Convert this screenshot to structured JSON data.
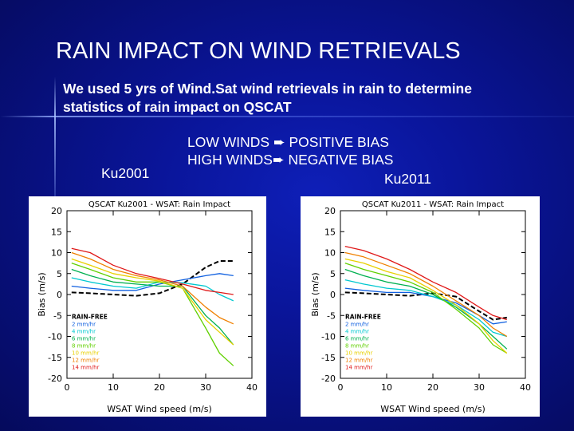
{
  "slide": {
    "title": "RAIN IMPACT ON WIND RETRIEVALS",
    "intro_line1": "We used 5 yrs of Wind.Sat wind retrievals in rain to determine",
    "intro_line2": "statistics of rain impact on QSCAT",
    "low_winds": "LOW WINDS",
    "positive_bias": "POSITIVE BIAS",
    "high_winds": "HIGH WINDS",
    "negative_bias": "NEGATIVE BIAS",
    "label_left": "Ku2001",
    "label_right": "Ku2011",
    "arrow_icon": "arrow-right-icon"
  },
  "chart_data": [
    {
      "type": "line",
      "title": "QSCAT Ku2001 - WSAT: Rain Impact",
      "xlabel": "WSAT Wind speed (m/s)",
      "ylabel": "Bias (m/s)",
      "xlim": [
        0,
        40
      ],
      "ylim": [
        -20,
        20
      ],
      "xticks": [
        "0",
        "10",
        "20",
        "30",
        "40"
      ],
      "yticks": [
        "20",
        "15",
        "10",
        "5",
        "0",
        "-5",
        "-10",
        "-15",
        "-20"
      ],
      "x": [
        1,
        5,
        10,
        15,
        20,
        25,
        30,
        33,
        36
      ],
      "series": [
        {
          "name": "RAIN-FREE",
          "color": "#000000",
          "dashed": true,
          "values": [
            0.5,
            0.3,
            0.0,
            -0.3,
            0.3,
            2.5,
            6.5,
            8.0,
            8.0
          ]
        },
        {
          "name": "2 mm/hr",
          "color": "#1060e0",
          "values": [
            2.0,
            1.5,
            1.0,
            1.0,
            2.5,
            3.5,
            4.5,
            5.0,
            4.5
          ]
        },
        {
          "name": "4 mm/hr",
          "color": "#00c8d0",
          "values": [
            4.0,
            3.0,
            2.0,
            1.5,
            3.0,
            2.8,
            2.0,
            0.0,
            -1.5
          ]
        },
        {
          "name": "6 mm/hr",
          "color": "#00b050",
          "values": [
            6.0,
            4.5,
            3.0,
            2.5,
            2.0,
            2.0,
            -5.0,
            -8.0,
            -12.0
          ]
        },
        {
          "name": "8 mm/hr",
          "color": "#60d000",
          "values": [
            7.5,
            6.0,
            4.0,
            3.0,
            3.0,
            1.5,
            -8.0,
            -14.0,
            -17.0
          ]
        },
        {
          "name": "10 mm/hr",
          "color": "#e8d000",
          "values": [
            8.5,
            7.0,
            5.0,
            4.0,
            3.2,
            1.5,
            -6.0,
            -9.0,
            -12.0
          ]
        },
        {
          "name": "12 mm/hr",
          "color": "#f08000",
          "values": [
            10.0,
            8.5,
            6.0,
            4.5,
            3.5,
            2.0,
            -3.0,
            -5.5,
            -7.0
          ]
        },
        {
          "name": "14 mm/hr",
          "color": "#e01818",
          "values": [
            11.0,
            10.0,
            7.0,
            5.0,
            3.8,
            2.5,
            1.0,
            0.5,
            0.0
          ]
        }
      ]
    },
    {
      "type": "line",
      "title": "QSCAT Ku2011 - WSAT: Rain Impact",
      "xlabel": "WSAT Wind speed (m/s)",
      "ylabel": "Bias (m/s)",
      "xlim": [
        0,
        40
      ],
      "ylim": [
        -20,
        20
      ],
      "xticks": [
        "0",
        "10",
        "20",
        "30",
        "40"
      ],
      "yticks": [
        "20",
        "15",
        "10",
        "5",
        "0",
        "-5",
        "-10",
        "-15",
        "-20"
      ],
      "x": [
        1,
        5,
        10,
        15,
        20,
        25,
        30,
        33,
        36
      ],
      "series": [
        {
          "name": "RAIN-FREE",
          "color": "#000000",
          "dashed": true,
          "values": [
            0.5,
            0.3,
            0.0,
            -0.3,
            0.3,
            -0.5,
            -4.0,
            -6.0,
            -5.5
          ]
        },
        {
          "name": "2 mm/hr",
          "color": "#1060e0",
          "values": [
            1.5,
            1.0,
            0.5,
            0.5,
            -0.5,
            -2.0,
            -5.0,
            -7.0,
            -6.5
          ]
        },
        {
          "name": "4 mm/hr",
          "color": "#00c8d0",
          "values": [
            3.5,
            2.5,
            1.5,
            1.0,
            -0.5,
            -2.5,
            -6.0,
            -9.0,
            -10.0
          ]
        },
        {
          "name": "6 mm/hr",
          "color": "#00b050",
          "values": [
            6.0,
            4.5,
            3.0,
            2.0,
            0.0,
            -3.0,
            -7.0,
            -10.0,
            -13.0
          ]
        },
        {
          "name": "8 mm/hr",
          "color": "#60d000",
          "values": [
            7.5,
            6.0,
            4.5,
            3.0,
            0.5,
            -3.5,
            -8.0,
            -12.0,
            -14.0
          ]
        },
        {
          "name": "10 mm/hr",
          "color": "#e8d000",
          "values": [
            8.5,
            7.5,
            5.5,
            4.0,
            1.0,
            -2.5,
            -7.0,
            -11.0,
            -14.0
          ]
        },
        {
          "name": "12 mm/hr",
          "color": "#f08000",
          "values": [
            10.0,
            9.0,
            7.0,
            5.0,
            2.0,
            -1.5,
            -5.0,
            -8.0,
            -10.0
          ]
        },
        {
          "name": "14 mm/hr",
          "color": "#e01818",
          "values": [
            11.5,
            10.5,
            8.5,
            6.0,
            3.0,
            0.5,
            -3.0,
            -5.0,
            -6.0
          ]
        }
      ]
    }
  ]
}
